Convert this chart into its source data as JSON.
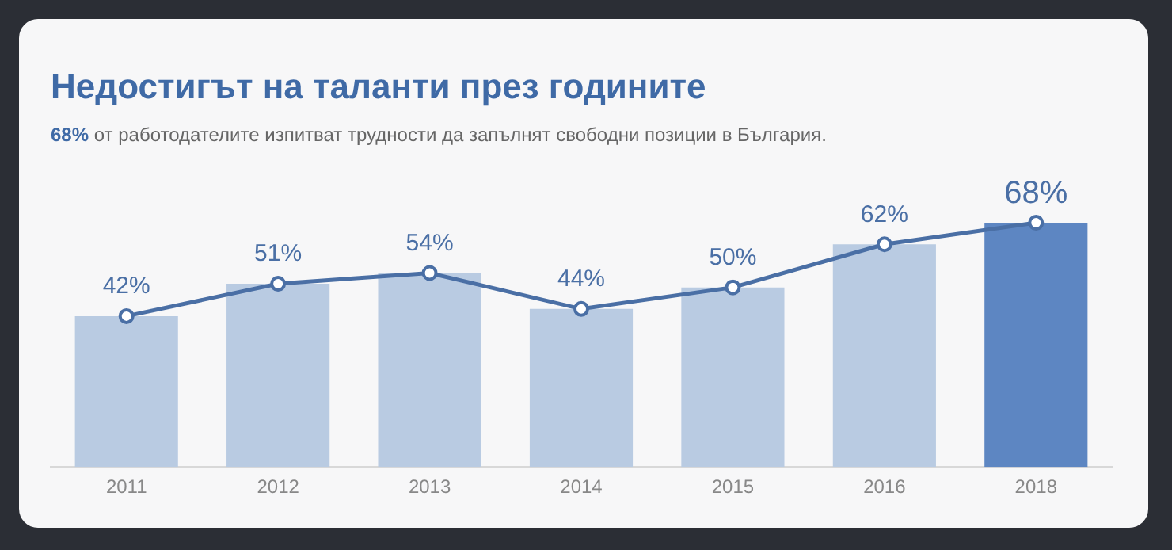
{
  "chart_data": {
    "type": "bar",
    "title": "Недостигът на таланти през годините",
    "subtitle": "68% от работодателите изпитват трудности да запълнят свободни позиции в България.",
    "categories": [
      "2011",
      "2012",
      "2013",
      "2014",
      "2015",
      "2016",
      "2018"
    ],
    "series": [
      {
        "colors": [
          "#b9cbe2",
          "#b9cbe2",
          "#b9cbe2",
          "#b9cbe2",
          "#b9cbe2",
          "#b9cbe2",
          "#5d86c2"
        ],
        "values": [
          42,
          51,
          54,
          44,
          50,
          62,
          68
        ]
      },
      {
        "type": "line",
        "color": "#4a6fa5",
        "values": [
          42,
          51,
          54,
          44,
          50,
          62,
          68
        ],
        "value_labels": [
          "42%",
          "51%",
          "54%",
          "44%",
          "50%",
          "62%",
          "68%"
        ]
      }
    ],
    "marker": "circle",
    "legend": false,
    "grid": false,
    "tick_labels": "x"
  }
}
